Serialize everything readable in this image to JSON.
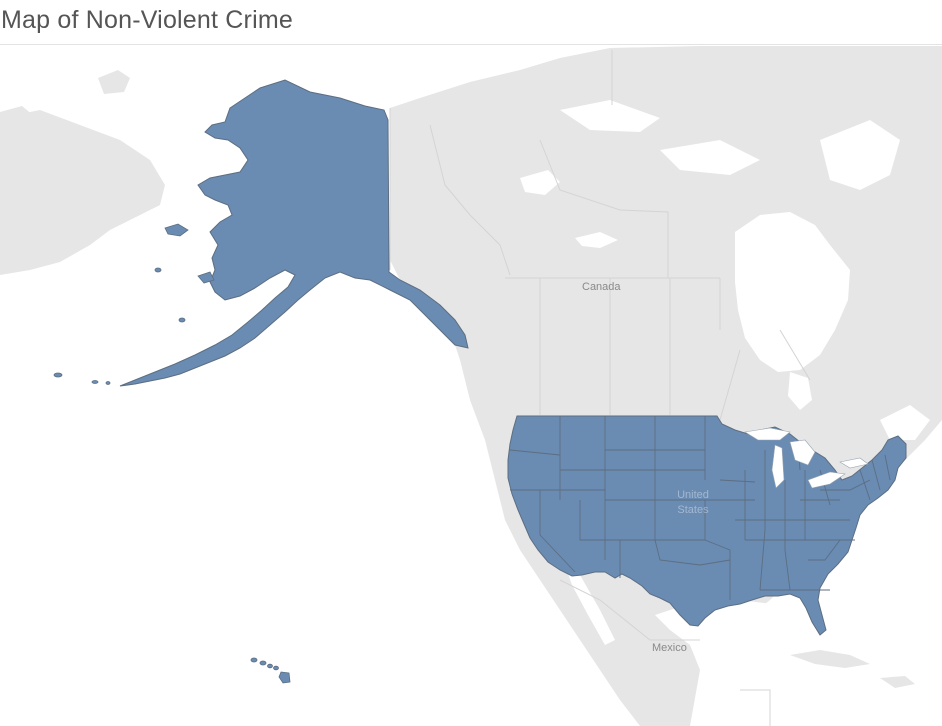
{
  "header": {
    "title": "Map of Non-Violent Crime"
  },
  "map": {
    "labels": {
      "canada": "Canada",
      "united_states": "United States",
      "mexico": "Mexico"
    },
    "colors": {
      "background": "#ffffff",
      "land": "#e6e6e6",
      "water": "#ffffff",
      "boundary": "#d4d4d4",
      "state_fill": "#6a8bb2",
      "state_border": "#5c6e82"
    }
  }
}
